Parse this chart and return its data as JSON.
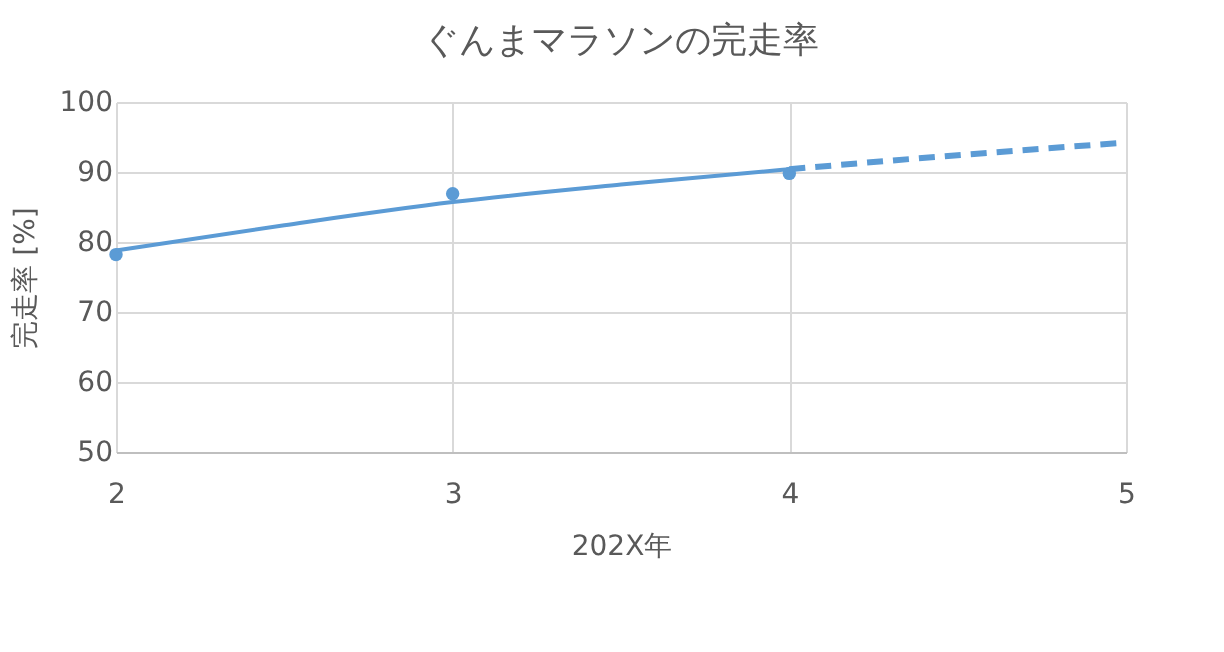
{
  "chart_data": {
    "type": "scatter",
    "title": "ぐんまマラソンの完走率",
    "xlabel": "202X年",
    "ylabel": "完走率 [%]",
    "xlim": [
      2,
      5
    ],
    "xticks": [
      2,
      3,
      4,
      5
    ],
    "ylim": [
      50,
      100
    ],
    "yticks": [
      50,
      60,
      70,
      80,
      90,
      100
    ],
    "grid": true,
    "series": [
      {
        "type": "scatter",
        "color": "#5b9bd5",
        "marker": "circle",
        "x": [
          2,
          3,
          4
        ],
        "values": [
          78.2,
          86.9,
          89.8
        ]
      },
      {
        "type": "line",
        "color": "#5b9bd5",
        "line_style": "solid",
        "marker": "none",
        "x": [
          2,
          2.5,
          3,
          3.5,
          4
        ],
        "values": [
          78.8,
          82.4,
          85.7,
          88.2,
          90.4
        ]
      },
      {
        "type": "line",
        "color": "#5b9bd5",
        "line_style": "dashed",
        "marker": "none",
        "x": [
          4,
          4.5,
          5
        ],
        "values": [
          90.4,
          92.4,
          94.2
        ]
      }
    ]
  }
}
